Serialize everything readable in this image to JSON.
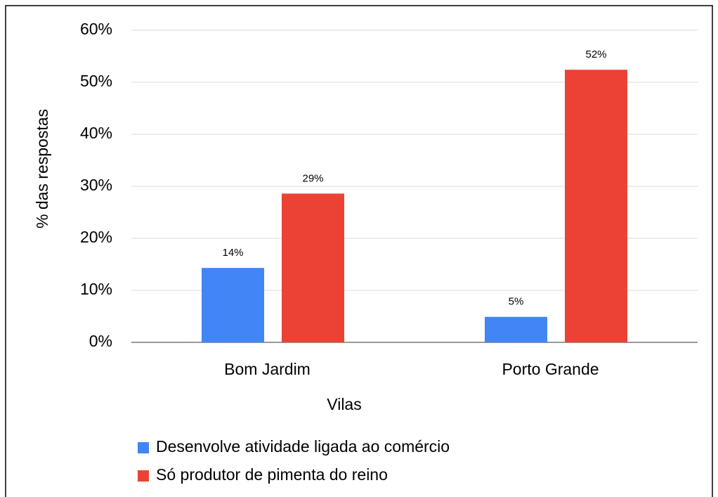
{
  "chart_data": {
    "type": "bar",
    "y_label": "% das respostas",
    "x_label": "Vilas",
    "categories": [
      "Bom Jardim",
      "Porto Grande"
    ],
    "series": [
      {
        "name": "Desenvolve atividade ligada ao comércio",
        "color": "#4285f4",
        "values": [
          14.3,
          4.9
        ],
        "value_labels": [
          "14%",
          "5%"
        ]
      },
      {
        "name": "Só produtor de pimenta do reino",
        "color": "#ea4335",
        "values": [
          28.6,
          52.4
        ],
        "value_labels": [
          "29%",
          "52%"
        ]
      }
    ],
    "ylim": [
      0,
      60
    ],
    "yticks": [
      {
        "value": 0,
        "label": "0%"
      },
      {
        "value": 10,
        "label": "10%"
      },
      {
        "value": 20,
        "label": "20%"
      },
      {
        "value": 30,
        "label": "30%"
      },
      {
        "value": 40,
        "label": "40%"
      },
      {
        "value": 50,
        "label": "50%"
      },
      {
        "value": 60,
        "label": "60%"
      }
    ],
    "grid": true
  }
}
